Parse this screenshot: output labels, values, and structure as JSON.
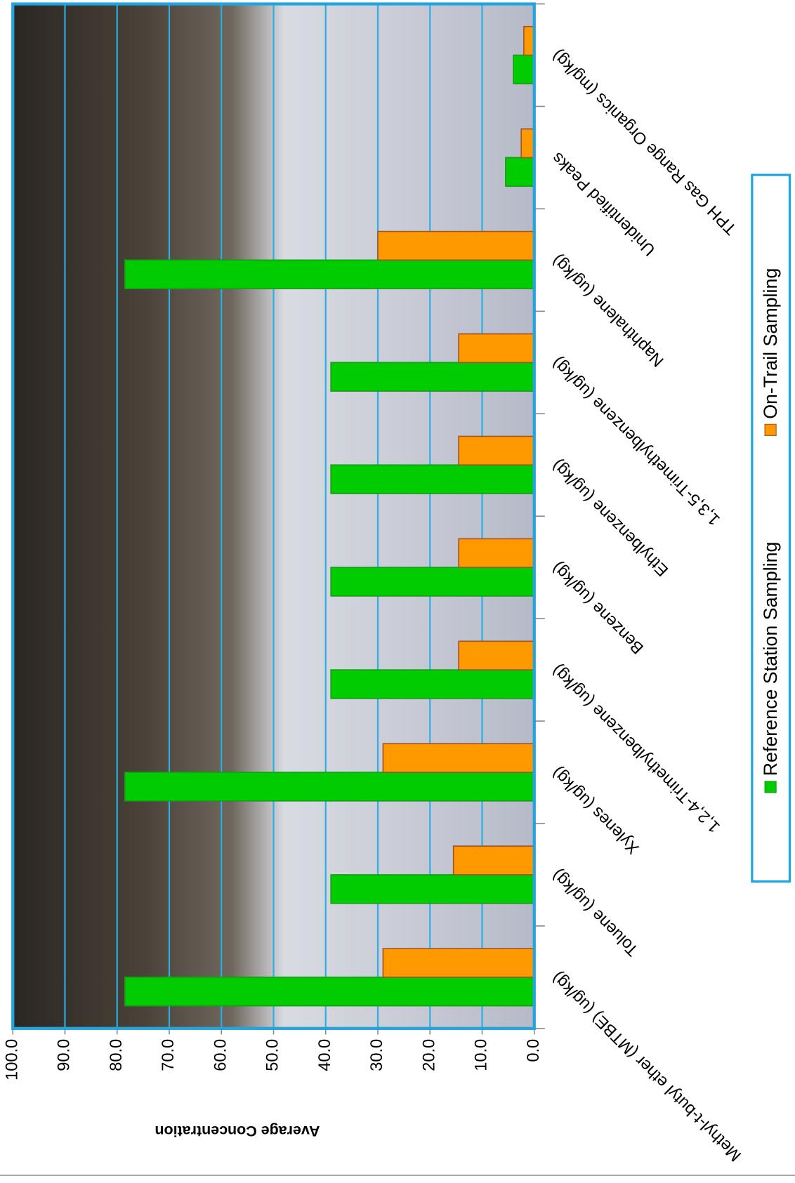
{
  "chart_data": {
    "type": "bar",
    "y_label": "Average Concentration",
    "categories": [
      "Methyl-t-butyl ether (MTBE) (ug/kg)",
      "Toluene (ug/kg)",
      "Xylenes (ug/kg)",
      "1,2,4-Trimethylbenzene (ug/kg)",
      "Benzene (ug/kg)",
      "Ethylbenzene (ug/kg)",
      "1,3,5-Trimethylbenzene (ug/kg)",
      "Naphthalene (ug/kg)",
      "Unidentified Peaks",
      "TPH Gas Range Organics (mg/kg)"
    ],
    "series": [
      {
        "name": "Reference Station Sampling",
        "color": "#00cc00",
        "values": [
          78.5,
          39,
          78.5,
          39,
          39,
          39,
          39,
          78.5,
          5.5,
          4
        ]
      },
      {
        "name": "On-Trail Sampling",
        "color": "#ff9900",
        "values": [
          29,
          15.5,
          29,
          14.5,
          14.5,
          14.5,
          14.5,
          30,
          2.5,
          2
        ]
      }
    ],
    "ylim": [
      0,
      100
    ],
    "yticks": [
      {
        "value": 0,
        "label": "0.0"
      },
      {
        "value": 10,
        "label": "10.0"
      },
      {
        "value": 20,
        "label": "20.0"
      },
      {
        "value": 30,
        "label": "30.0"
      },
      {
        "value": 40,
        "label": "40.0"
      },
      {
        "value": 50,
        "label": "50.0"
      },
      {
        "value": 60,
        "label": "60.0"
      },
      {
        "value": 70,
        "label": "70.0"
      },
      {
        "value": 80,
        "label": "80.0"
      },
      {
        "value": 90,
        "label": "90.0"
      },
      {
        "value": 100,
        "label": "100.0"
      }
    ],
    "grid": true,
    "legend": "bottom"
  }
}
